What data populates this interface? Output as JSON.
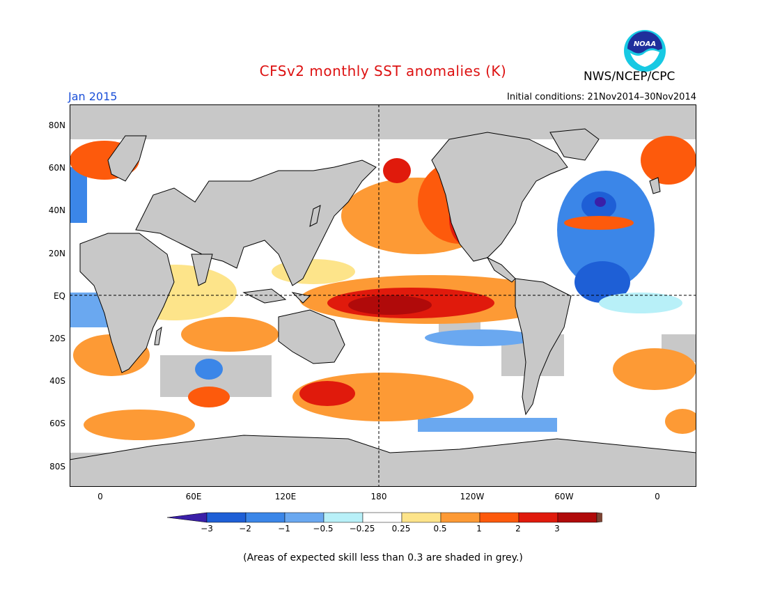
{
  "title": "CFSv2 monthly SST anomalies (K)",
  "agency": "NWS/NCEP/CPC",
  "logo_text": "NOAA",
  "month": "Jan 2015",
  "initial_conditions": "Initial conditions: 21Nov2014–30Nov2014",
  "y_ticks": [
    "80N",
    "60N",
    "40N",
    "20N",
    "EQ",
    "20S",
    "40S",
    "60S",
    "80S"
  ],
  "x_ticks": [
    "0",
    "60E",
    "120E",
    "180",
    "120W",
    "60W",
    "0"
  ],
  "colorbar": {
    "labels": [
      "−3",
      "−2",
      "−1",
      "−0.5",
      "−0.25",
      "0.25",
      "0.5",
      "1",
      "2",
      "3"
    ],
    "colors": [
      "#3a1fa8",
      "#1e5fd6",
      "#3b86e8",
      "#6aa8f0",
      "#b8f0f8",
      "#ffffff",
      "#fde48a",
      "#fd9a35",
      "#fd5a0c",
      "#e01a0c",
      "#b00a0a",
      "#7a4535"
    ]
  },
  "footnote": "(Areas of expected skill less than 0.3 are shaded in grey.)"
}
